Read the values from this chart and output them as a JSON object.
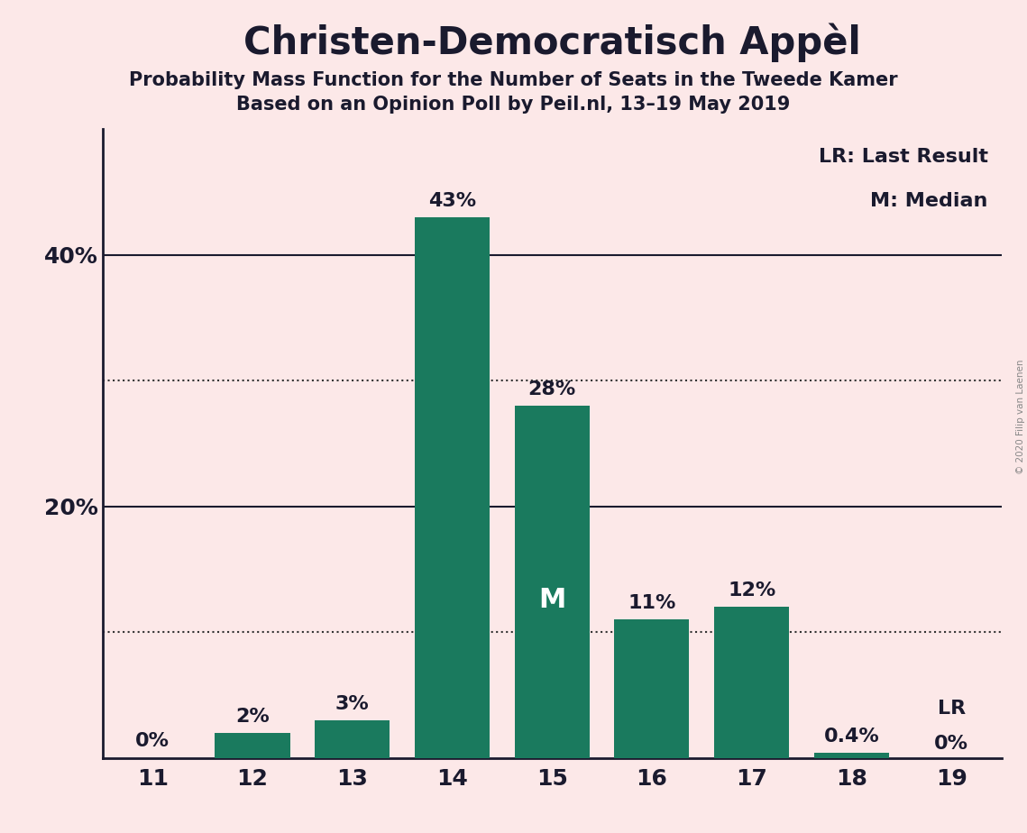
{
  "title": "Christen-Democratisch Appèl",
  "subtitle1": "Probability Mass Function for the Number of Seats in the Tweede Kamer",
  "subtitle2": "Based on an Opinion Poll by Peil.nl, 13–19 May 2019",
  "copyright": "© 2020 Filip van Laenen",
  "categories": [
    11,
    12,
    13,
    14,
    15,
    16,
    17,
    18,
    19
  ],
  "values": [
    0,
    2,
    3,
    43,
    28,
    11,
    12,
    0.4,
    0
  ],
  "bar_color": "#1a7a5e",
  "background_color": "#fce8e8",
  "median_seat": 15,
  "last_result_seat": 19,
  "legend_lr": "LR: Last Result",
  "legend_m": "M: Median",
  "solid_lines": [
    20,
    40
  ],
  "dotted_lines": [
    10,
    30
  ],
  "ylim": [
    0,
    50
  ],
  "bar_labels": [
    "0%",
    "2%",
    "3%",
    "43%",
    "28%",
    "11%",
    "12%",
    "0.4%",
    "0%"
  ],
  "median_label_color": "#ffffff",
  "lr_label": "LR",
  "title_fontsize": 30,
  "subtitle_fontsize": 15,
  "axis_fontsize": 18,
  "label_fontsize": 16,
  "legend_fontsize": 16,
  "ytick_positions": [
    20,
    40
  ],
  "ytick_labels": [
    "20%",
    "40%"
  ]
}
